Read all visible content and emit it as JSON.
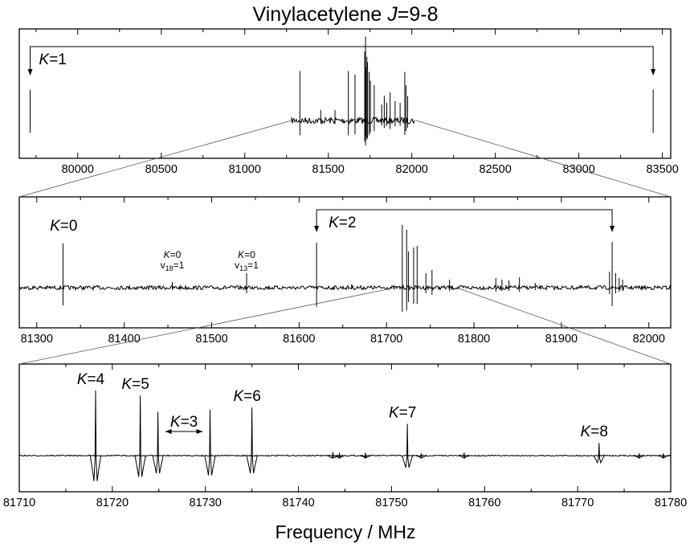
{
  "chart_data": {
    "type": "line",
    "title_parts": [
      "Vinylacetylene ",
      "J",
      "=9-8"
    ],
    "xlabel": "Frequency / MHz",
    "panels": [
      {
        "name": "overview",
        "xlim": [
          79650,
          83550
        ],
        "ticks": [
          80000,
          80500,
          81000,
          81500,
          82000,
          82500,
          83000,
          83500
        ],
        "noise_band": [
          81280,
          82020
        ],
        "lines": [
          {
            "x": 79715,
            "y": 0.35
          },
          {
            "x": 83445,
            "y": 0.35
          },
          {
            "x": 81330,
            "y": 0.56
          },
          {
            "x": 81455,
            "y": 0.12
          },
          {
            "x": 81540,
            "y": 0.12
          },
          {
            "x": 81620,
            "y": 0.56
          },
          {
            "x": 81660,
            "y": 0.52
          },
          {
            "x": 81718,
            "y": 0.78
          },
          {
            "x": 81723,
            "y": 0.95
          },
          {
            "x": 81725,
            "y": 0.6
          },
          {
            "x": 81731,
            "y": 0.72
          },
          {
            "x": 81735,
            "y": 0.66
          },
          {
            "x": 81745,
            "y": 0.55
          },
          {
            "x": 81752,
            "y": 0.45
          },
          {
            "x": 81775,
            "y": 0.4
          },
          {
            "x": 81820,
            "y": 0.18
          },
          {
            "x": 81835,
            "y": 0.28
          },
          {
            "x": 81850,
            "y": 0.2
          },
          {
            "x": 81870,
            "y": 0.32
          },
          {
            "x": 81900,
            "y": 0.22
          },
          {
            "x": 81930,
            "y": 0.2
          },
          {
            "x": 81958,
            "y": 0.55
          },
          {
            "x": 81965,
            "y": 0.4
          },
          {
            "x": 81975,
            "y": 0.28
          }
        ],
        "annotations": [
          {
            "label_k": "K",
            "label_rest": "=1",
            "bracket": [
              79715,
              83445
            ]
          }
        ]
      },
      {
        "name": "zoom-1",
        "xlim": [
          81280,
          82025
        ],
        "ticks": [
          81300,
          81400,
          81500,
          81600,
          81700,
          81800,
          81900,
          82000
        ],
        "lines": [
          {
            "x": 81330,
            "y": 0.55,
            "y_neg": 0.22
          },
          {
            "x": 81455,
            "y": 0.07,
            "y_neg": 0.03
          },
          {
            "x": 81540,
            "y": 0.18,
            "y_neg": 0.07
          },
          {
            "x": 81620,
            "y": 0.56,
            "y_neg": 0.24
          },
          {
            "x": 81660,
            "y": 0.04,
            "y_neg": 0.02
          },
          {
            "x": 81718,
            "y": 0.78,
            "y_neg": 0.3
          },
          {
            "x": 81723,
            "y": 0.72,
            "y_neg": 0.28
          },
          {
            "x": 81725,
            "y": 0.45,
            "y_neg": 0.18
          },
          {
            "x": 81731,
            "y": 0.5,
            "y_neg": 0.2
          },
          {
            "x": 81735,
            "y": 0.52,
            "y_neg": 0.2
          },
          {
            "x": 81745,
            "y": 0.18,
            "y_neg": 0.07
          },
          {
            "x": 81752,
            "y": 0.22,
            "y_neg": 0.09
          },
          {
            "x": 81772,
            "y": 0.1,
            "y_neg": 0.04
          },
          {
            "x": 81825,
            "y": 0.12,
            "y_neg": 0.05
          },
          {
            "x": 81832,
            "y": 0.1,
            "y_neg": 0.04
          },
          {
            "x": 81840,
            "y": 0.09,
            "y_neg": 0.04
          },
          {
            "x": 81852,
            "y": 0.13,
            "y_neg": 0.05
          },
          {
            "x": 81870,
            "y": 0.06,
            "y_neg": 0.03
          },
          {
            "x": 81955,
            "y": 0.2,
            "y_neg": 0.08
          },
          {
            "x": 81958,
            "y": 0.57,
            "y_neg": 0.23
          },
          {
            "x": 81962,
            "y": 0.18,
            "y_neg": 0.07
          },
          {
            "x": 81966,
            "y": 0.12,
            "y_neg": 0.05
          },
          {
            "x": 81970,
            "y": 0.1,
            "y_neg": 0.04
          }
        ],
        "annotations": [
          {
            "label_k": "K",
            "label_rest": "=0",
            "x": 81330
          },
          {
            "label_k": "K",
            "label_rest": "=2",
            "bracket": [
              81620,
              81958
            ]
          },
          {
            "label_k": "K",
            "label_rest": "=0",
            "sub_line": "v",
            "sub": "18",
            "sub_rest": "=1",
            "x": 81455
          },
          {
            "label_k": "K",
            "label_rest": "=0",
            "sub_line": "v",
            "sub": "13",
            "sub_rest": "=1",
            "x": 81540
          }
        ]
      },
      {
        "name": "zoom-2",
        "xlim": [
          81710,
          81780
        ],
        "ticks": [
          81710,
          81720,
          81730,
          81740,
          81750,
          81760,
          81770,
          81780
        ],
        "lines": [
          {
            "x": 81718.2,
            "y": 0.92,
            "y_neg": 0.36
          },
          {
            "x": 81723.0,
            "y": 0.85,
            "y_neg": 0.3
          },
          {
            "x": 81724.9,
            "y": 0.62,
            "y_neg": 0.25
          },
          {
            "x": 81730.5,
            "y": 0.65,
            "y_neg": 0.28
          },
          {
            "x": 81735.0,
            "y": 0.68,
            "y_neg": 0.25
          },
          {
            "x": 81743.7,
            "y": 0.05,
            "y_neg": 0.03
          },
          {
            "x": 81744.4,
            "y": 0.04,
            "y_neg": 0.02
          },
          {
            "x": 81747.2,
            "y": 0.04,
            "y_neg": 0.02
          },
          {
            "x": 81751.7,
            "y": 0.45,
            "y_neg": 0.17
          },
          {
            "x": 81753.2,
            "y": 0.03,
            "y_neg": 0.02
          },
          {
            "x": 81757.8,
            "y": 0.04,
            "y_neg": 0.02
          },
          {
            "x": 81772.3,
            "y": 0.18,
            "y_neg": 0.1
          },
          {
            "x": 81776.6,
            "y": 0.03,
            "y_neg": 0.02
          },
          {
            "x": 81779.2,
            "y": 0.03,
            "y_neg": 0.02
          }
        ],
        "annotations": [
          {
            "label_k": "K",
            "label_rest": "=4",
            "x": 81718.2
          },
          {
            "label_k": "K",
            "label_rest": "=5",
            "x": 81723.0
          },
          {
            "label_k": "K",
            "label_rest": "=3",
            "range": [
              81724.9,
              81730.5
            ]
          },
          {
            "label_k": "K",
            "label_rest": "=6",
            "x": 81735.0
          },
          {
            "label_k": "K",
            "label_rest": "=7",
            "x": 81751.7
          },
          {
            "label_k": "K",
            "label_rest": "=8",
            "x": 81772.3
          }
        ]
      }
    ]
  }
}
